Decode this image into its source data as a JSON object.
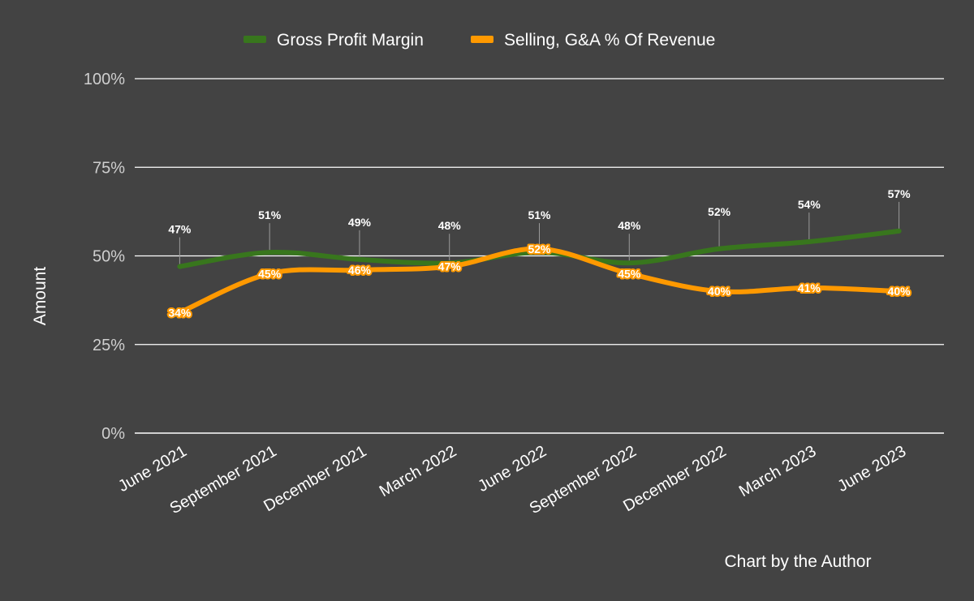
{
  "chart_data": {
    "type": "line",
    "categories": [
      "June 2021",
      "September 2021",
      "December 2021",
      "March 2022",
      "June 2022",
      "September 2022",
      "December 2022",
      "March 2023",
      "June 2023"
    ],
    "series": [
      {
        "name": "Gross Profit Margin",
        "color": "#38761d",
        "values": [
          47,
          51,
          49,
          48,
          51,
          48,
          52,
          54,
          57
        ],
        "labels": [
          "47%",
          "51%",
          "49%",
          "48%",
          "51%",
          "48%",
          "52%",
          "54%",
          "57%"
        ]
      },
      {
        "name": "Selling, G&A % Of Revenue",
        "color": "#ff9900",
        "values": [
          34,
          45,
          46,
          47,
          52,
          45,
          40,
          41,
          40
        ],
        "labels": [
          "34%",
          "45%",
          "46%",
          "47%",
          "52%",
          "45%",
          "40%",
          "41%",
          "40%"
        ]
      }
    ],
    "y_ticks": [
      "0%",
      "25%",
      "50%",
      "75%",
      "100%"
    ],
    "ylim": [
      0,
      100
    ],
    "ylabel": "Amount",
    "xlabel": "",
    "legend": "top-center",
    "grid": true
  },
  "credit": "Chart by the Author"
}
